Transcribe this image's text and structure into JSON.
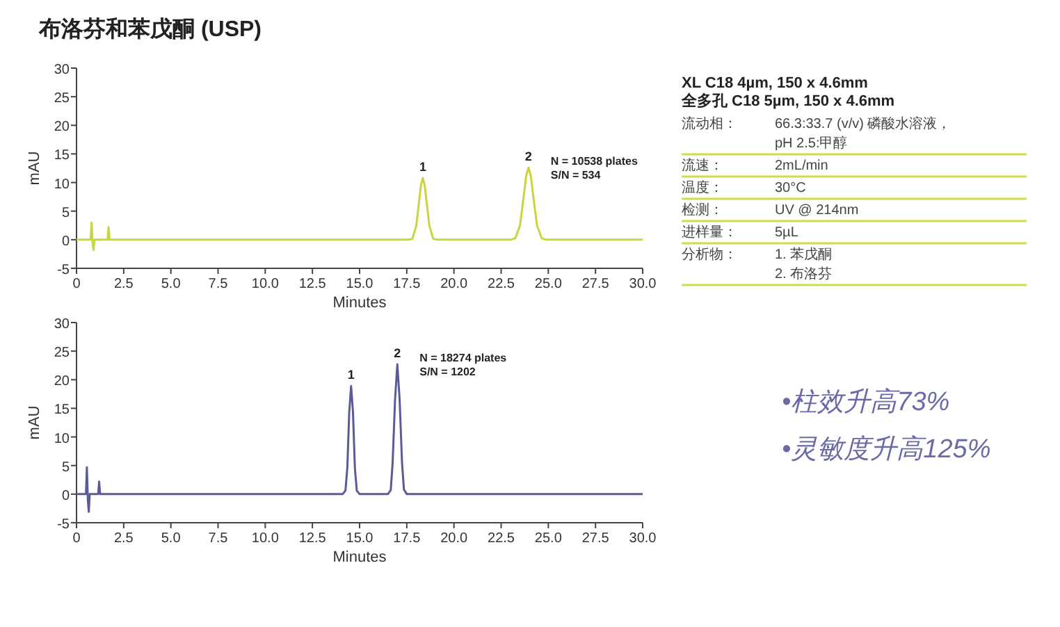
{
  "chart_data": [
    {
      "type": "line",
      "title": "布洛芬和苯戊酮 (USP)",
      "xlabel": "Minutes",
      "ylabel": "mAU",
      "xlim": [
        0,
        30
      ],
      "ylim": [
        -5,
        30
      ],
      "xticks": [
        0,
        {
          "value": 2.5,
          "label": "2.5"
        },
        {
          "value": 5,
          "label": "5.0"
        },
        {
          "value": 7.5,
          "label": "7.5"
        },
        {
          "value": 10,
          "label": "10.0"
        },
        {
          "value": 12.5,
          "label": "12.5"
        },
        {
          "value": 15,
          "label": "15.0"
        },
        {
          "value": 17.5,
          "label": "17.5"
        },
        {
          "value": 20,
          "label": "20.0"
        },
        {
          "value": 22.5,
          "label": "22.5"
        },
        {
          "value": 25,
          "label": "25.0"
        },
        {
          "value": 27.5,
          "label": "27.5"
        },
        {
          "value": 30,
          "label": "30.0"
        }
      ],
      "yticks": [
        -5,
        0,
        5,
        10,
        15,
        20,
        25,
        30
      ],
      "x": [
        0,
        0.75,
        0.8,
        0.85,
        0.9,
        0.95,
        1.0,
        1.6,
        1.65,
        1.7,
        1.75,
        1.8,
        17.6,
        17.8,
        18.0,
        18.15,
        18.25,
        18.35,
        18.45,
        18.55,
        18.7,
        18.9,
        19.1,
        23.0,
        23.25,
        23.5,
        23.7,
        23.83,
        23.95,
        24.07,
        24.2,
        24.4,
        24.65,
        24.9,
        30
      ],
      "series": [
        {
          "color": "#c9d43f",
          "values": [
            0,
            0,
            3,
            -0.5,
            -1.8,
            0,
            0,
            0,
            0,
            2.2,
            0,
            0,
            0,
            0.2,
            2.4,
            6.6,
            9.5,
            10.8,
            9.5,
            6.6,
            2.4,
            0.2,
            0,
            0,
            0.25,
            2.5,
            7.7,
            11.2,
            12.6,
            11.2,
            7.7,
            2.5,
            0.25,
            0,
            0
          ]
        }
      ],
      "annotations": [
        {
          "text": "1",
          "x": 18.35,
          "y": 10.8
        },
        {
          "text": "2",
          "x": 23.95,
          "y": 12.6
        },
        "N = 10538 plates",
        "S/N = 534"
      ]
    },
    {
      "type": "line",
      "xlabel": "Minutes",
      "ylabel": "mAU",
      "xlim": [
        0,
        30
      ],
      "ylim": [
        -5,
        30
      ],
      "xticks": [
        0,
        {
          "value": 2.5,
          "label": "2.5"
        },
        {
          "value": 5,
          "label": "5.0"
        },
        {
          "value": 7.5,
          "label": "7.5"
        },
        {
          "value": 10,
          "label": "10.0"
        },
        {
          "value": 12.5,
          "label": "12.5"
        },
        {
          "value": 15,
          "label": "15.0"
        },
        {
          "value": 17.5,
          "label": "17.5"
        },
        {
          "value": 20,
          "label": "20.0"
        },
        {
          "value": 22.5,
          "label": "22.5"
        },
        {
          "value": 25,
          "label": "25.0"
        },
        {
          "value": 27.5,
          "label": "27.5"
        },
        {
          "value": 30,
          "label": "30.0"
        }
      ],
      "yticks": [
        -5,
        0,
        5,
        10,
        15,
        20,
        25,
        30
      ],
      "x": [
        0,
        0.5,
        0.55,
        0.6,
        0.65,
        0.7,
        0.75,
        1.1,
        1.15,
        1.2,
        1.25,
        1.3,
        14.1,
        14.25,
        14.35,
        14.45,
        14.55,
        14.65,
        14.75,
        14.85,
        15.0,
        16.5,
        16.65,
        16.75,
        16.88,
        17.0,
        17.12,
        17.25,
        17.35,
        17.5,
        30
      ],
      "series": [
        {
          "color": "#5b5b99",
          "values": [
            0,
            0,
            4.7,
            -1,
            -3.1,
            0,
            0,
            0,
            0,
            2.2,
            0,
            0,
            0,
            0.6,
            4.6,
            14.3,
            18.9,
            14.3,
            4.6,
            0.6,
            0,
            0,
            0.7,
            5.4,
            16.6,
            22.7,
            16.6,
            5.4,
            0.8,
            0,
            0
          ]
        }
      ],
      "annotations": [
        {
          "text": "1",
          "x": 14.55,
          "y": 18.9
        },
        {
          "text": "2",
          "x": 17.0,
          "y": 22.7
        },
        "N = 18274 plates",
        "S/N = 1202"
      ]
    },
    {
      "type": "other",
      "annotations": [
        "XL C18 4µm, 150 x 4.6mm",
        "全多孔 C18 5µm, 150 x 4.6mm",
        "流动相：",
        "66.3:33.7 (v/v) 磷酸水溶液，",
        "pH 2.5:甲醇",
        "流速：",
        "2mL/min",
        "温度：",
        "30°C",
        "检测：",
        "UV @ 214nm",
        "进样量：",
        "5µL",
        "分析物：",
        "1. 苯戊酮",
        "2. 布洛芬",
        "•柱效升高73%",
        "•灵敏度升高125%"
      ]
    }
  ]
}
